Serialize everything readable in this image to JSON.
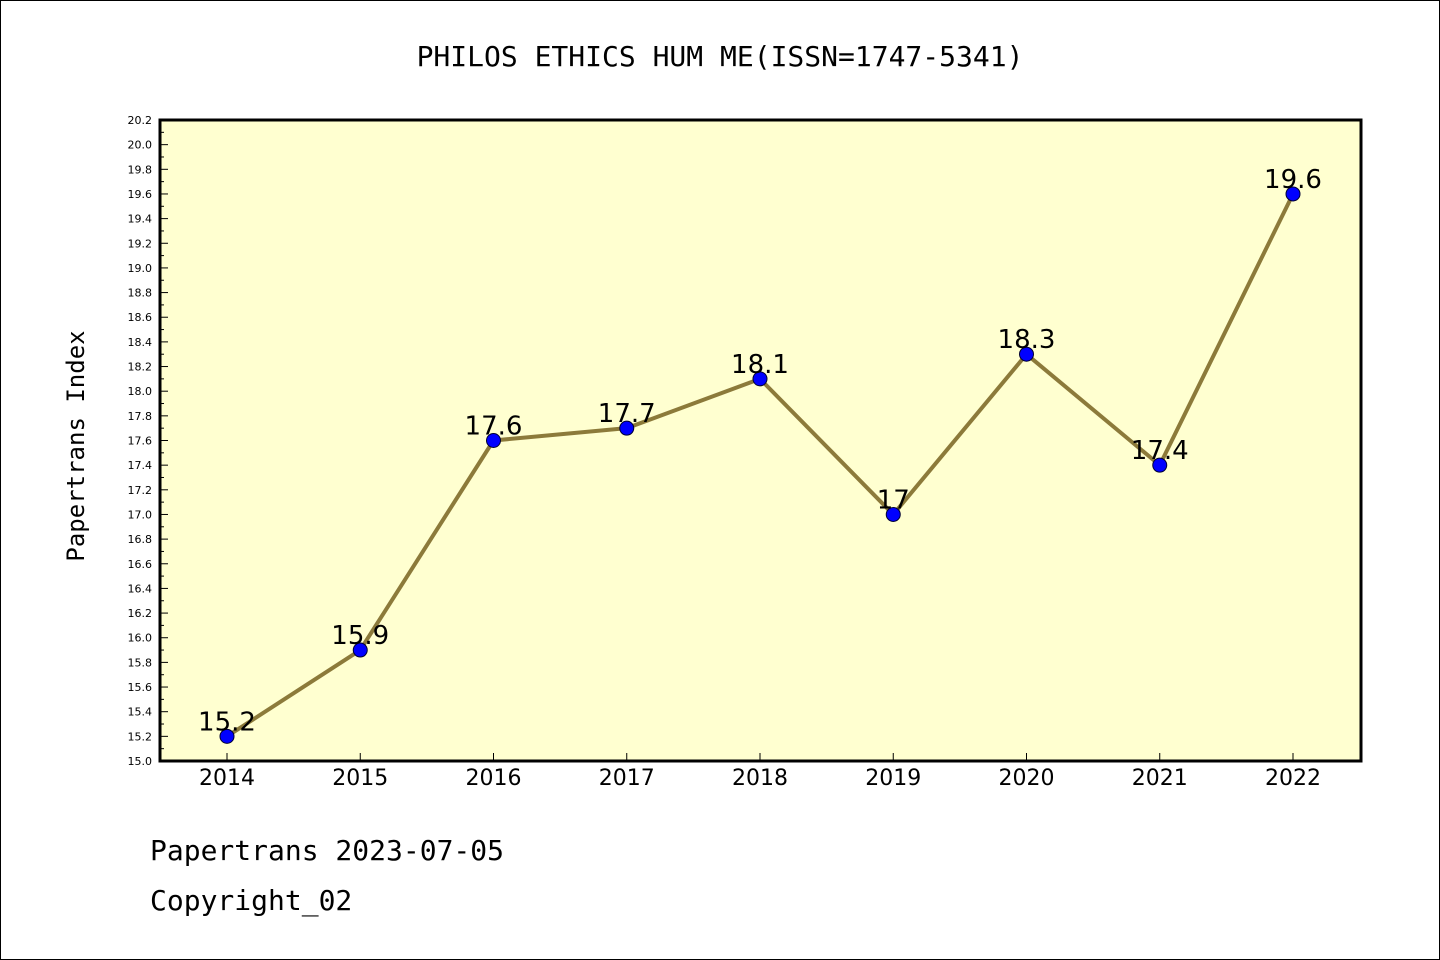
{
  "chart_data": {
    "type": "line",
    "title": "PHILOS ETHICS HUM ME(ISSN=1747-5341)",
    "xlabel": "",
    "ylabel": "Papertrans Index",
    "categories": [
      "2014",
      "2015",
      "2016",
      "2017",
      "2018",
      "2019",
      "2020",
      "2021",
      "2022"
    ],
    "values": [
      15.2,
      15.9,
      17.6,
      17.7,
      18.1,
      17.0,
      18.3,
      17.4,
      19.6
    ],
    "data_labels": [
      "15.2",
      "15.9",
      "17.6",
      "17.7",
      "18.1",
      "17",
      "18.3",
      "17.4",
      "19.6"
    ],
    "ylim": [
      15.0,
      20.2
    ],
    "yticks": [
      "15.0",
      "15.2",
      "15.4",
      "15.6",
      "15.8",
      "16.0",
      "16.2",
      "16.4",
      "16.6",
      "16.8",
      "17.0",
      "17.2",
      "17.4",
      "17.6",
      "17.8",
      "18.0",
      "18.2",
      "18.4",
      "18.6",
      "18.8",
      "19.0",
      "19.2",
      "19.4",
      "19.6",
      "19.8",
      "20.0",
      "20.2"
    ],
    "grid": false,
    "colors": {
      "line": "#8c7a3a",
      "marker": "#0000ff",
      "plot_bg": "#ffffd0"
    }
  },
  "footer": {
    "line1": "Papertrans 2023-07-05",
    "line2": "Copyright_02"
  }
}
